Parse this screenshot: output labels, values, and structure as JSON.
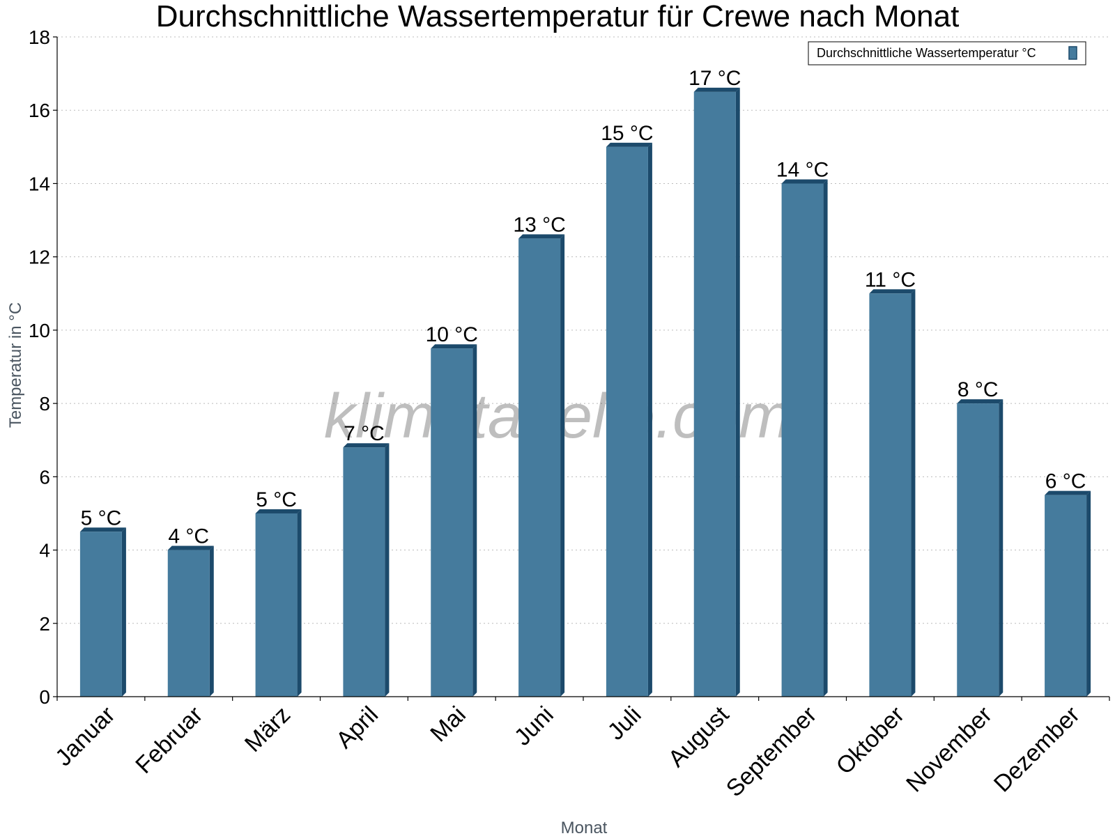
{
  "chart_data": {
    "type": "bar",
    "title": "Durchschnittliche Wassertemperatur für Crewe nach Monat",
    "xlabel": "Monat",
    "ylabel": "Temperatur in °C",
    "ylim": [
      0,
      18
    ],
    "yticks": [
      0,
      2,
      4,
      6,
      8,
      10,
      12,
      14,
      16,
      18
    ],
    "grid": true,
    "legend_position": "top-right",
    "categories": [
      "Januar",
      "Februar",
      "März",
      "April",
      "Mai",
      "Juni",
      "Juli",
      "August",
      "September",
      "Oktober",
      "November",
      "Dezember"
    ],
    "series": [
      {
        "name": "Durchschnittliche Wassertemperatur °C",
        "color": "#457b9d",
        "values": [
          4.5,
          4.0,
          5.0,
          6.8,
          9.5,
          12.5,
          15.0,
          16.5,
          14.0,
          11.0,
          8.0,
          5.5
        ],
        "data_labels": [
          "5 °C",
          "4 °C",
          "5 °C",
          "7 °C",
          "10 °C",
          "13 °C",
          "15 °C",
          "17 °C",
          "14 °C",
          "11 °C",
          "8 °C",
          "6 °C"
        ]
      }
    ]
  },
  "watermark": "klimatabelle.com"
}
